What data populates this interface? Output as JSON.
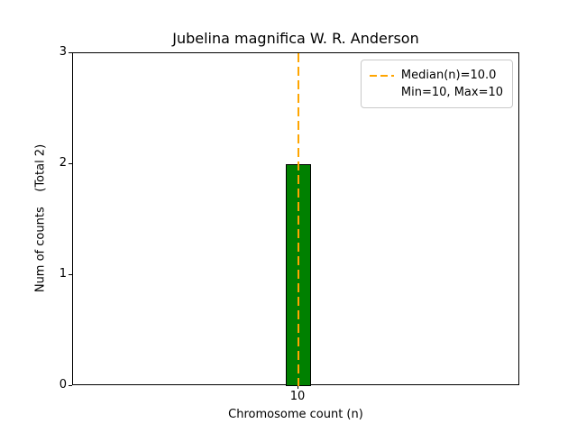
{
  "chart_data": {
    "type": "bar",
    "title": "Jubelina magnifica W. R. Anderson",
    "xlabel": "Chromosome count (n)",
    "ylabel": "Num of counts    (Total 2)",
    "categories": [
      "10"
    ],
    "values": [
      2
    ],
    "total_counts": 2,
    "ylim": [
      0,
      3
    ],
    "yticks": [
      "0",
      "1",
      "2",
      "3"
    ],
    "xticks": [
      "10"
    ],
    "bar_color": "#008000",
    "bar_edge_color": "#000000",
    "grid": "off",
    "median_line": {
      "x": 10,
      "style": "dashed",
      "color": "#FFA500"
    },
    "legend": {
      "position": "upper right",
      "entries": [
        "Median(n)=10.0",
        "Min=10, Max=10"
      ]
    }
  }
}
